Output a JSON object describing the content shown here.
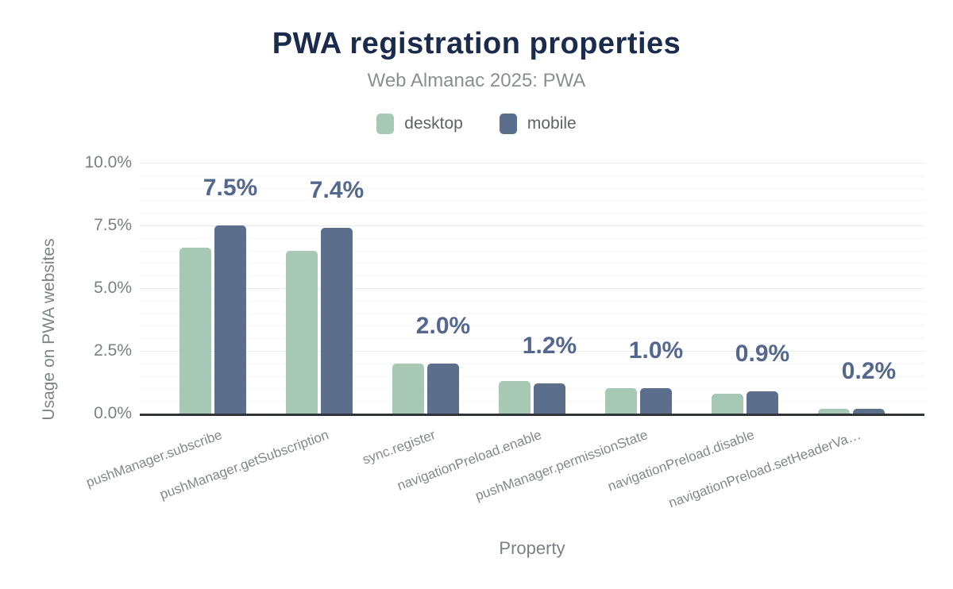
{
  "header": {
    "title": "PWA registration properties",
    "subtitle": "Web Almanac 2025: PWA"
  },
  "legend": [
    {
      "label": "desktop",
      "color": "#a6c8b5"
    },
    {
      "label": "mobile",
      "color": "#5b6e8c"
    }
  ],
  "y_axis": {
    "title": "Usage on PWA websites",
    "ticks": [
      "10.0%",
      "7.5%",
      "5.0%",
      "2.5%",
      "0.0%"
    ],
    "tick_values": [
      10.0,
      7.5,
      5.0,
      2.5,
      0.0
    ]
  },
  "x_axis": {
    "title": "Property"
  },
  "chart_data": {
    "type": "bar",
    "title": "PWA registration properties",
    "subtitle": "Web Almanac 2025: PWA",
    "xlabel": "Property",
    "ylabel": "Usage on PWA websites",
    "ylim": [
      0,
      10
    ],
    "grid": true,
    "legend_position": "top",
    "categories": [
      "pushManager.subscribe",
      "pushManager.getSubscription",
      "sync.register",
      "navigationPreload.enable",
      "pushManager.permissionState",
      "navigationPreload.disable",
      "navigationPreload.setHeaderVa…"
    ],
    "series": [
      {
        "name": "desktop",
        "color": "#a6c8b5",
        "values": [
          6.6,
          6.5,
          2.0,
          1.3,
          1.0,
          0.8,
          0.2
        ]
      },
      {
        "name": "mobile",
        "color": "#5b6e8c",
        "values": [
          7.5,
          7.4,
          2.0,
          1.2,
          1.0,
          0.9,
          0.2
        ]
      }
    ],
    "bar_labels": [
      "7.5%",
      "7.4%",
      "2.0%",
      "1.2%",
      "1.0%",
      "0.9%",
      "0.2%"
    ]
  },
  "colors": {
    "title": "#1a2b4e",
    "subtitle": "#8b8f93",
    "data_label": "#54678d",
    "axis_line": "#2f3438",
    "tick_text": "#7b8084",
    "category_text": "#84888c",
    "grid_major": "#e8eaed",
    "grid_minor": "#f5f6f8"
  }
}
